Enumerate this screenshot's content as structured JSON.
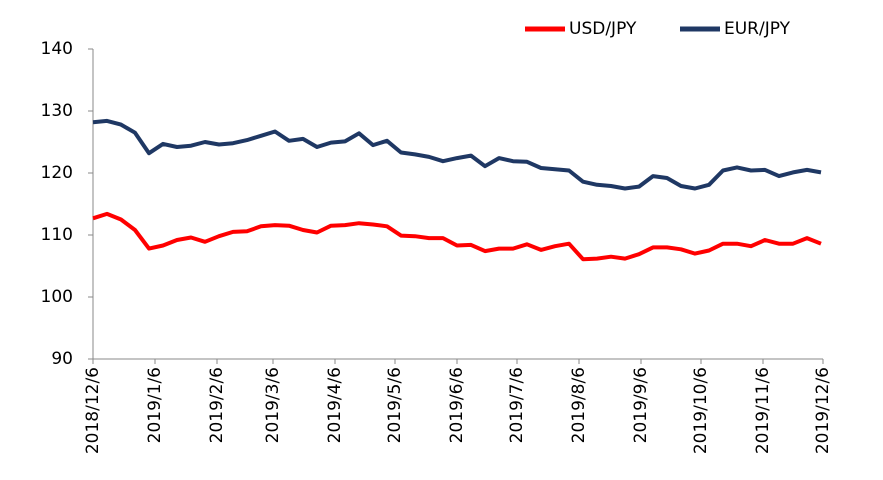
{
  "chart_data": {
    "type": "line",
    "x": [
      "2018/12/6",
      "2018/12/13",
      "2018/12/20",
      "2018/12/27",
      "2019/1/3",
      "2019/1/10",
      "2019/1/17",
      "2019/1/24",
      "2019/1/31",
      "2019/2/7",
      "2019/2/14",
      "2019/2/21",
      "2019/2/28",
      "2019/3/7",
      "2019/3/14",
      "2019/3/21",
      "2019/3/28",
      "2019/4/4",
      "2019/4/11",
      "2019/4/18",
      "2019/4/25",
      "2019/5/2",
      "2019/5/9",
      "2019/5/16",
      "2019/5/23",
      "2019/5/30",
      "2019/6/6",
      "2019/6/13",
      "2019/6/20",
      "2019/6/27",
      "2019/7/4",
      "2019/7/11",
      "2019/7/18",
      "2019/7/25",
      "2019/8/1",
      "2019/8/8",
      "2019/8/15",
      "2019/8/22",
      "2019/8/29",
      "2019/9/5",
      "2019/9/12",
      "2019/9/19",
      "2019/9/26",
      "2019/10/3",
      "2019/10/10",
      "2019/10/17",
      "2019/10/24",
      "2019/10/31",
      "2019/11/7",
      "2019/11/14",
      "2019/11/21",
      "2019/11/28",
      "2019/12/5"
    ],
    "series": [
      {
        "name": "USD/JPY",
        "color": "#ff0000",
        "values": [
          112.7,
          113.4,
          112.5,
          110.8,
          107.8,
          108.3,
          109.2,
          109.6,
          108.9,
          109.8,
          110.5,
          110.6,
          111.4,
          111.6,
          111.5,
          110.8,
          110.4,
          111.5,
          111.6,
          111.9,
          111.7,
          111.4,
          109.9,
          109.8,
          109.5,
          109.5,
          108.3,
          108.4,
          107.4,
          107.8,
          107.8,
          108.5,
          107.6,
          108.2,
          108.6,
          106.1,
          106.2,
          106.5,
          106.2,
          106.9,
          108.0,
          108.0,
          107.7,
          107.0,
          107.5,
          108.6,
          108.6,
          108.2,
          109.2,
          108.6,
          108.6,
          109.5,
          108.6
        ]
      },
      {
        "name": "EUR/JPY",
        "color": "#1f3864",
        "values": [
          128.2,
          128.4,
          127.8,
          126.5,
          123.2,
          124.7,
          124.2,
          124.4,
          125.0,
          124.6,
          124.8,
          125.3,
          126.0,
          126.7,
          125.2,
          125.5,
          124.2,
          124.9,
          125.1,
          126.4,
          124.5,
          125.2,
          123.3,
          123.0,
          122.6,
          121.9,
          122.4,
          122.8,
          121.1,
          122.4,
          121.9,
          121.8,
          120.8,
          120.6,
          120.4,
          118.6,
          118.1,
          117.9,
          117.5,
          117.8,
          119.5,
          119.2,
          117.9,
          117.5,
          118.1,
          120.4,
          120.9,
          120.4,
          120.5,
          119.5,
          120.1,
          120.5,
          120.1
        ]
      }
    ],
    "xlim": [
      "2018/12/6",
      "2019/12/6"
    ],
    "xticks": [
      "2018/12/6",
      "2019/1/6",
      "2019/2/6",
      "2019/3/6",
      "2019/4/6",
      "2019/5/6",
      "2019/6/6",
      "2019/7/6",
      "2019/8/6",
      "2019/9/6",
      "2019/10/6",
      "2019/11/6",
      "2019/12/6"
    ],
    "ylim": [
      90,
      140
    ],
    "yticks": [
      90,
      100,
      110,
      120,
      130,
      140
    ],
    "legend": "top-right"
  }
}
